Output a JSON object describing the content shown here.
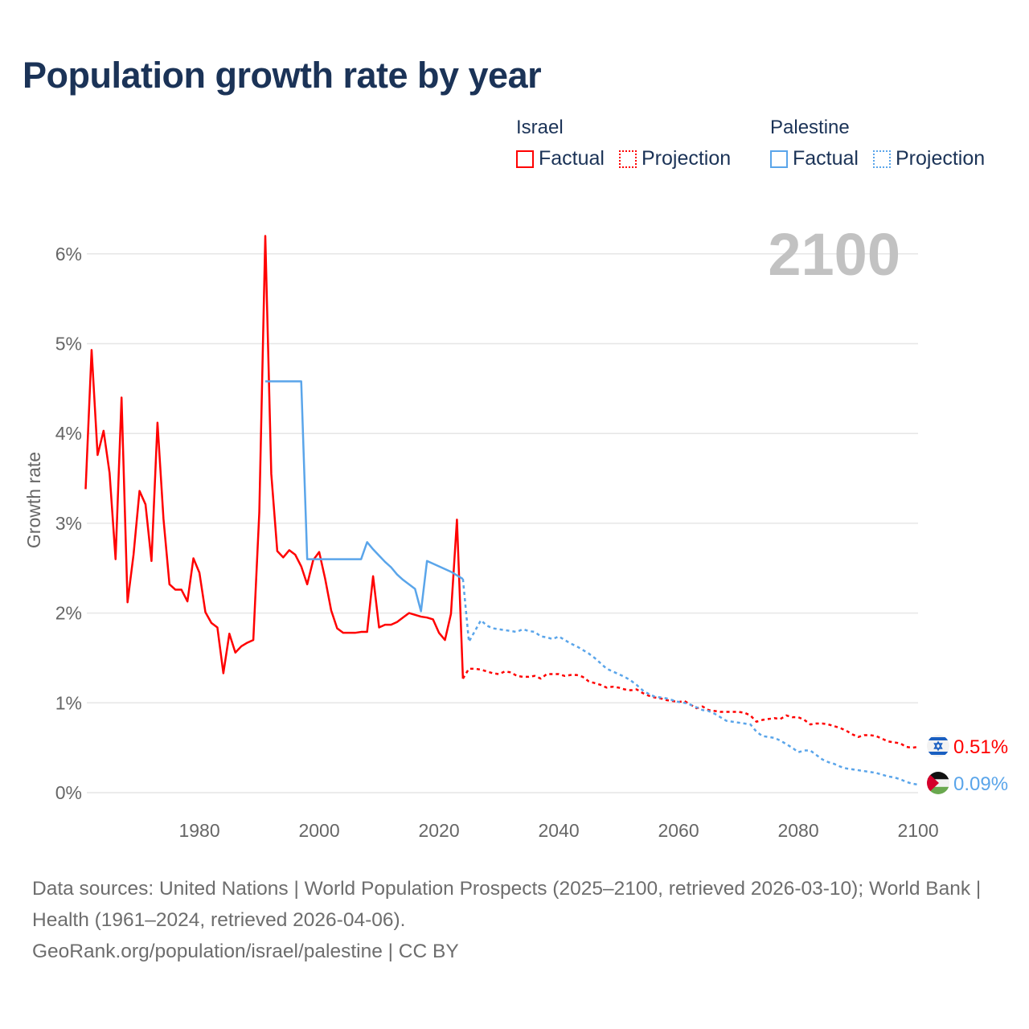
{
  "title": "Population growth rate by year",
  "legend": {
    "groups": [
      {
        "name": "Israel",
        "color": "#ff0000",
        "items": [
          "Factual",
          "Projection"
        ]
      },
      {
        "name": "Palestine",
        "color": "#5aa5ea",
        "items": [
          "Factual",
          "Projection"
        ]
      }
    ]
  },
  "year_overlay": "2100",
  "footer": {
    "line1": "Data sources: United Nations | World Population Prospects (2025–2100, retrieved 2026-03-10); World Bank | Health (1961–2024, retrieved 2026-04-06).",
    "line2": "GeoRank.org/population/israel/palestine | CC BY"
  },
  "chart_data": {
    "type": "line",
    "title": "Population growth rate by year",
    "xlabel": "",
    "ylabel": "Growth rate",
    "xlim": [
      1961,
      2100
    ],
    "ylim": [
      0,
      6.2
    ],
    "x_ticks": [
      1980,
      2000,
      2020,
      2040,
      2060,
      2080,
      2100
    ],
    "y_ticks": [
      0,
      1,
      2,
      3,
      4,
      5,
      6
    ],
    "y_tick_labels": [
      "0%",
      "1%",
      "2%",
      "3%",
      "4%",
      "5%",
      "6%"
    ],
    "grid": true,
    "legend_position": "top-right",
    "series": [
      {
        "name": "Israel Factual",
        "color": "#ff0000",
        "dashed": false,
        "start_year": 1961,
        "values": [
          3.38,
          4.93,
          3.76,
          4.03,
          3.56,
          2.6,
          4.4,
          2.12,
          2.65,
          3.36,
          3.21,
          2.58,
          4.12,
          3.05,
          2.32,
          2.26,
          2.26,
          2.13,
          2.61,
          2.45,
          2.01,
          1.89,
          1.84,
          1.33,
          1.77,
          1.56,
          1.63,
          1.67,
          1.7,
          3.12,
          6.2,
          3.55,
          2.69,
          2.62,
          2.7,
          2.65,
          2.52,
          2.32,
          2.59,
          2.68,
          2.38,
          2.03,
          1.83,
          1.78,
          1.78,
          1.78,
          1.79,
          1.79,
          2.41,
          1.84,
          1.87,
          1.87,
          1.9,
          1.95,
          2.0,
          1.98,
          1.96,
          1.95,
          1.93,
          1.78,
          1.7,
          1.99,
          3.04,
          1.27
        ]
      },
      {
        "name": "Israel Projection",
        "color": "#ff0000",
        "dashed": true,
        "start_year": 2025,
        "values": [
          1.38,
          1.38,
          1.37,
          1.35,
          1.33,
          1.32,
          1.35,
          1.34,
          1.3,
          1.29,
          1.29,
          1.3,
          1.27,
          1.32,
          1.32,
          1.32,
          1.3,
          1.31,
          1.31,
          1.29,
          1.24,
          1.22,
          1.2,
          1.17,
          1.18,
          1.17,
          1.15,
          1.14,
          1.15,
          1.11,
          1.08,
          1.06,
          1.05,
          1.03,
          1.02,
          1.01,
          1.02,
          0.98,
          0.94,
          0.96,
          0.92,
          0.91,
          0.9,
          0.9,
          0.9,
          0.9,
          0.89,
          0.86,
          0.79,
          0.81,
          0.82,
          0.83,
          0.82,
          0.86,
          0.84,
          0.84,
          0.81,
          0.76,
          0.77,
          0.77,
          0.76,
          0.74,
          0.72,
          0.69,
          0.65,
          0.62,
          0.64,
          0.64,
          0.63,
          0.6,
          0.57,
          0.56,
          0.55,
          0.51,
          0.5,
          0.51
        ]
      },
      {
        "name": "Palestine Factual",
        "color": "#5aa5ea",
        "dashed": false,
        "start_year": 1991,
        "values": [
          4.58,
          4.58,
          4.58,
          4.58,
          4.58,
          4.58,
          4.58,
          2.6,
          2.6,
          2.6,
          2.6,
          2.6,
          2.6,
          2.6,
          2.6,
          2.6,
          2.6,
          2.79,
          2.71,
          2.64,
          2.57,
          2.51,
          2.43,
          2.37,
          2.32,
          2.27,
          2.02,
          2.58,
          2.55,
          2.52,
          2.49,
          2.46,
          2.42,
          2.38
        ]
      },
      {
        "name": "Palestine Projection",
        "color": "#5aa5ea",
        "dashed": true,
        "start_year": 2025,
        "values": [
          1.68,
          1.8,
          1.92,
          1.86,
          1.83,
          1.82,
          1.81,
          1.8,
          1.79,
          1.82,
          1.8,
          1.79,
          1.74,
          1.73,
          1.71,
          1.74,
          1.7,
          1.66,
          1.63,
          1.59,
          1.55,
          1.5,
          1.44,
          1.38,
          1.35,
          1.32,
          1.29,
          1.25,
          1.2,
          1.14,
          1.1,
          1.07,
          1.06,
          1.05,
          1.03,
          1.01,
          1.0,
          0.98,
          0.95,
          0.92,
          0.91,
          0.88,
          0.84,
          0.8,
          0.79,
          0.78,
          0.77,
          0.76,
          0.68,
          0.63,
          0.62,
          0.61,
          0.58,
          0.54,
          0.5,
          0.45,
          0.47,
          0.47,
          0.42,
          0.37,
          0.34,
          0.32,
          0.29,
          0.27,
          0.26,
          0.25,
          0.24,
          0.23,
          0.22,
          0.2,
          0.18,
          0.17,
          0.15,
          0.12,
          0.1,
          0.09
        ]
      }
    ],
    "end_labels": [
      {
        "series": "Israel",
        "text": "0.51%",
        "value": 0.51,
        "color": "#ff0000",
        "icon": "israel-flag-icon"
      },
      {
        "series": "Palestine",
        "text": "0.09%",
        "value": 0.09,
        "color": "#5aa5ea",
        "icon": "palestine-flag-icon"
      }
    ]
  }
}
